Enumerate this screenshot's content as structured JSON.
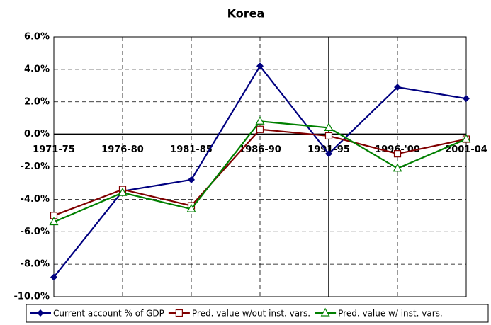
{
  "chart_data": {
    "type": "line",
    "title": "Korea",
    "categories": [
      "1971-75",
      "1976-80",
      "1981-85",
      "1986-90",
      "1991-95",
      "1996-'00",
      "2001-04"
    ],
    "series": [
      {
        "name": "Current account % of GDP",
        "color": "#000080",
        "marker": "diamond",
        "values": [
          -8.8,
          -3.5,
          -2.8,
          4.2,
          -1.2,
          2.9,
          2.2
        ]
      },
      {
        "name": "Pred. value w/out inst. vars.",
        "color": "#800000",
        "marker": "square",
        "values": [
          -5.0,
          -3.4,
          -4.4,
          0.3,
          -0.1,
          -1.2,
          -0.3
        ]
      },
      {
        "name": "Pred. value w/ inst. vars.",
        "color": "#008000",
        "marker": "triangle",
        "values": [
          -5.4,
          -3.6,
          -4.6,
          0.8,
          0.4,
          -2.1,
          -0.3
        ]
      }
    ],
    "ylim": [
      -10,
      6
    ],
    "yticks": [
      {
        "value": -10,
        "label": "-10.0%"
      },
      {
        "value": -8,
        "label": "-8.0%"
      },
      {
        "value": -6,
        "label": "-6.0%"
      },
      {
        "value": -4,
        "label": "-4.0%"
      },
      {
        "value": -2,
        "label": "-2.0%"
      },
      {
        "value": 0,
        "label": "0.0%"
      },
      {
        "value": 2,
        "label": "2.0%"
      },
      {
        "value": 4,
        "label": "4.0%"
      },
      {
        "value": 6,
        "label": "6.0%"
      }
    ],
    "grid": true,
    "legend": "bottom"
  }
}
